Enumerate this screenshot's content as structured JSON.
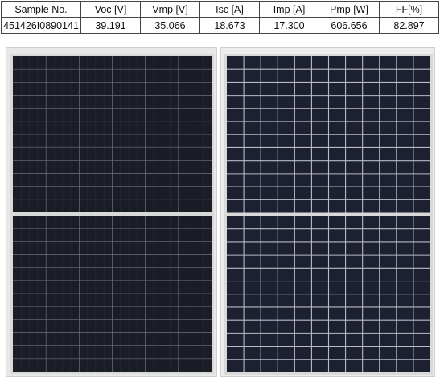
{
  "table": {
    "headers": [
      "Sample No.",
      "Voc [V]",
      "Vmp [V]",
      "Isc [A]",
      "Imp [A]",
      "Pmp [W]",
      "FF[%]"
    ],
    "rows": [
      [
        "451426I0890141",
        "39.191",
        "35.066",
        "18.673",
        "17.300",
        "606.656",
        "82.897"
      ]
    ]
  },
  "photos": {
    "left": {
      "subject": "solar-panel-front-monofacial"
    },
    "right": {
      "subject": "solar-panel-front-half-cut"
    }
  },
  "colors": {
    "panel_dark": "#1b1e26",
    "cell_grid": "#8a8e97",
    "frame": "#d9d9d9",
    "border": "#444444"
  }
}
